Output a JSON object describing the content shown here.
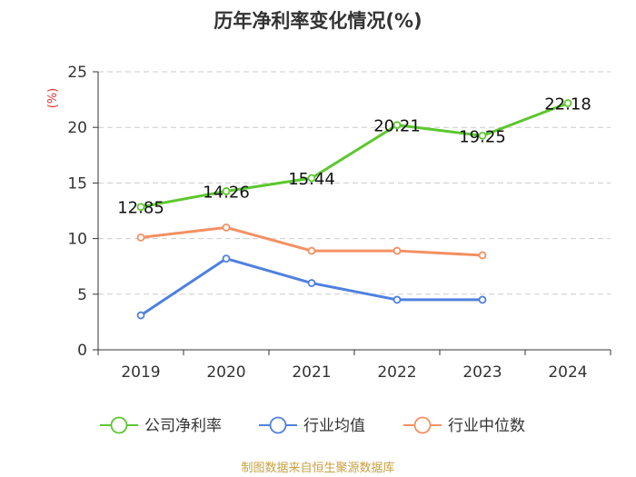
{
  "chart_data": {
    "type": "line",
    "title": "历年净利率变化情况(%)",
    "ylabel": "(%)",
    "xlabel": "",
    "categories": [
      "2019",
      "2020",
      "2021",
      "2022",
      "2023",
      "2024"
    ],
    "ylim": [
      0,
      25
    ],
    "yticks": [
      0,
      5,
      10,
      15,
      20,
      25
    ],
    "grid": true,
    "legend_position": "bottom",
    "series": [
      {
        "name": "公司净利率",
        "color": "#5cc72e",
        "values": [
          12.85,
          14.26,
          15.44,
          20.21,
          19.25,
          22.18
        ],
        "labels": [
          "12.85",
          "14.26",
          "15.44",
          "20.21",
          "19.25",
          "22.18"
        ]
      },
      {
        "name": "行业均值",
        "color": "#4f80e0",
        "values": [
          3.1,
          8.2,
          6.0,
          4.5,
          4.5,
          null
        ]
      },
      {
        "name": "行业中位数",
        "color": "#f59062",
        "values": [
          10.1,
          11.0,
          8.9,
          8.9,
          8.5,
          null
        ]
      }
    ]
  },
  "source": "制图数据来自恒生聚源数据库"
}
